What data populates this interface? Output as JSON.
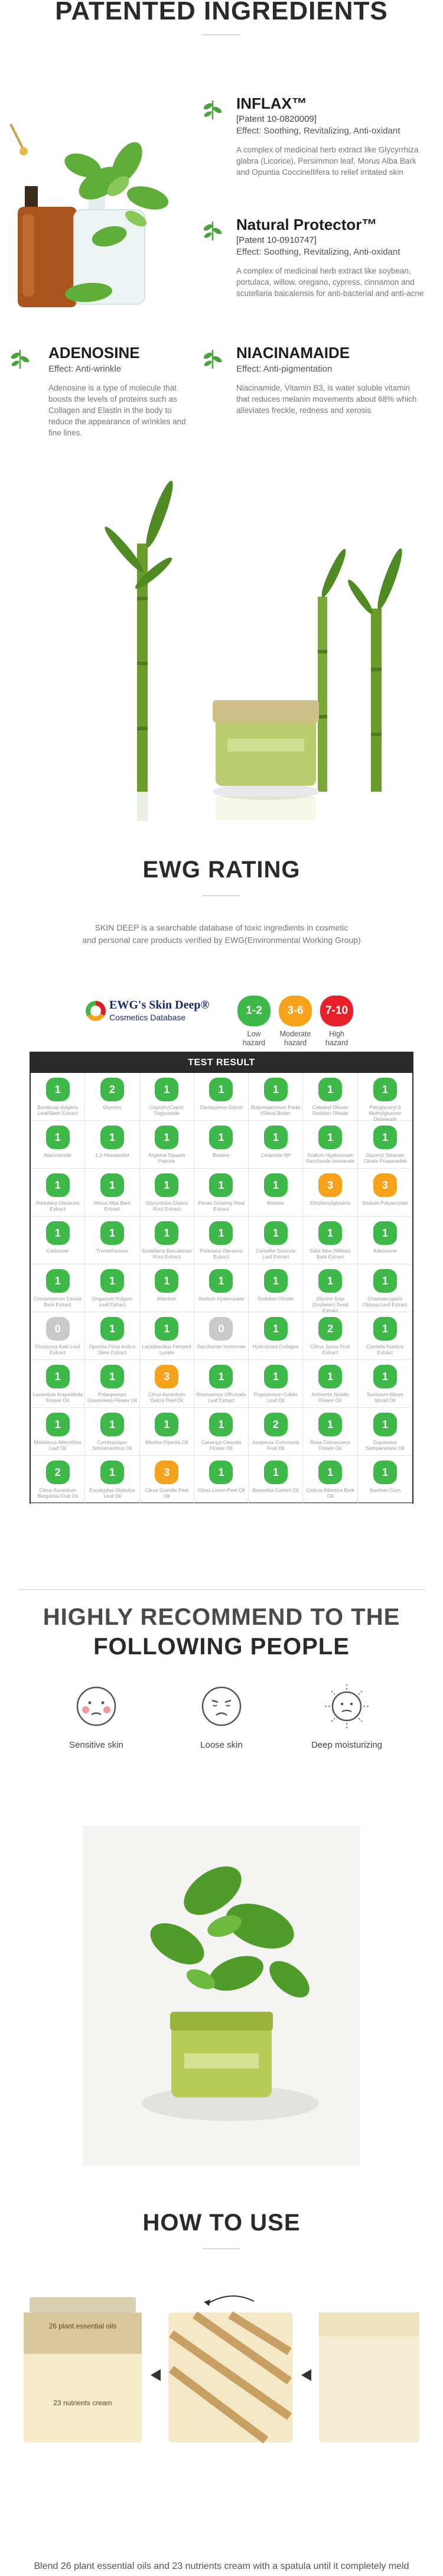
{
  "colors": {
    "low": "#3db849",
    "moderate": "#f7a21b",
    "high": "#e8202a",
    "unavailable": "#c9c9c9",
    "dark": "#2a2a2a"
  },
  "patented": {
    "title": "PATENTED INGREDIENTS",
    "ingredients": [
      {
        "name": "INFLAX™",
        "patent": "[Patent 10-0820009]",
        "effect": "Effect: Soothing, Revitalizing, Anti-oxidant",
        "desc": "A complex of medicinal herb extract like Glycyrrhiza glabra (Licorice), Persimmon leaf, Morus Alba Bark and Opuntia Coccinellifera to relief irritated skin",
        "icon": "leaf-icon"
      },
      {
        "name": "Natural Protector™",
        "patent": "[Patent 10-0910747]",
        "effect": "Effect: Soothing, Revitalizing, Anti-oxidant",
        "desc": "A complex of medicinal herb extract like soybean, portulaca, willow, oregano, cypress, cinnamon and scutellaria baicalensis for anti-bacterial and anti-acne",
        "icon": "leaf-icon"
      },
      {
        "name": "ADENOSINE",
        "patent": "",
        "effect": "Effect: Anti-wrinkle",
        "desc": "Adenosine is a type of molecule that boosts the levels of proteins such as Collagen and Elastin in the body to reduce the appearance of wrinkles and fine lines.",
        "icon": "leaf-icon"
      },
      {
        "name": "NIACINAMAIDE",
        "patent": "",
        "effect": "Effect: Anti-pigmentation",
        "desc": "Niacinamide, Vitamin B3, is water soluble vitamin that reduces melanin movements about 68% which alleviates freckle, redness and xerosis",
        "icon": "leaf-icon"
      }
    ]
  },
  "ewg": {
    "title": "EWG RATING",
    "desc_line1": "SKIN DEEP is a searchable database of toxic ingredients in cosmetic",
    "desc_line2": "and personal care products verified by EWG(Environmental Working Group)",
    "logo_line1": "EWG's Skin Deep®",
    "logo_line2": "Cosmetics Database",
    "hazards": [
      {
        "range": "1-2",
        "label1": "Low",
        "label2": "hazard",
        "color": "#3db849"
      },
      {
        "range": "3-6",
        "label1": "Moderate",
        "label2": "hazard",
        "color": "#f7a21b"
      },
      {
        "range": "7-10",
        "label1": "High",
        "label2": "hazard",
        "color": "#e8202a"
      }
    ],
    "table_title": "TEST RESULT",
    "cells": [
      {
        "s": "1",
        "n": "Bambusa Vulgaris Leaf/Stem Extract"
      },
      {
        "s": "2",
        "n": "Glycerin"
      },
      {
        "s": "1",
        "n": "Caprylic/Capric Triglyceride"
      },
      {
        "s": "1",
        "n": "Dipropylene Glycol"
      },
      {
        "s": "1",
        "n": "Butyrospermum Parkii (Shea) Butter"
      },
      {
        "s": "1",
        "n": "Cetearyl Olivate Sorbitan Olivate"
      },
      {
        "s": "1",
        "n": "Polyglyceryl-3 Methylglucose Distearate"
      },
      {
        "s": "1",
        "n": "Niacinamide"
      },
      {
        "s": "1",
        "n": "1,2-Hexanediol"
      },
      {
        "s": "1",
        "n": "Arginine Squash Peptide"
      },
      {
        "s": "1",
        "n": "Betaine"
      },
      {
        "s": "1",
        "n": "Ceramide NP"
      },
      {
        "s": "1",
        "n": "Sodium Hyaluronate Saccharide Isomerate"
      },
      {
        "s": "1",
        "n": "Glyceryl Stearate Citrate Propanediol"
      },
      {
        "s": "1",
        "n": "Portulaca Oleracea Extract"
      },
      {
        "s": "1",
        "n": "Morus Alba Bark Extract"
      },
      {
        "s": "1",
        "n": "Glycyrrhiza Glabra Root Extract"
      },
      {
        "s": "1",
        "n": "Panax Ginseng Root Extract"
      },
      {
        "s": "1",
        "n": "Betaine"
      },
      {
        "s": "3",
        "n": "Ethylhexylglycerin"
      },
      {
        "s": "3",
        "n": "Sodium Polyacrylate"
      },
      {
        "s": "1",
        "n": "Carbomer"
      },
      {
        "s": "1",
        "n": "Tromethamine"
      },
      {
        "s": "1",
        "n": "Scutellaria Baicalensis Root Extract"
      },
      {
        "s": "1",
        "n": "Portulaca Oleracea Extract"
      },
      {
        "s": "1",
        "n": "Camellia Sinensis Leaf Extract"
      },
      {
        "s": "1",
        "n": "Salix Alba (Willow) Bark Extract"
      },
      {
        "s": "1",
        "n": "Adenosine"
      },
      {
        "s": "1",
        "n": "Cinnamomum Cassia Bark Extract"
      },
      {
        "s": "1",
        "n": "Origanum Vulgare Leaf Extract"
      },
      {
        "s": "1",
        "n": "Allantoin"
      },
      {
        "s": "1",
        "n": "Sodium Hyaluronate"
      },
      {
        "s": "1",
        "n": "Sorbitan Olivate"
      },
      {
        "s": "1",
        "n": "Glycine Soja (Soybean) Seed Extract"
      },
      {
        "s": "1",
        "n": "Chamaecyparis Obtusa Leaf Extract"
      },
      {
        "s": "0",
        "n": "Diospyros Kaki Leaf Extract"
      },
      {
        "s": "1",
        "n": "Opuntia Ficus-Indica Stem Extract"
      },
      {
        "s": "1",
        "n": "Lactobacillus Ferment Lysate"
      },
      {
        "s": "0",
        "n": "Saccharide Isomerate"
      },
      {
        "s": "1",
        "n": "Hydrolyzed Collagen"
      },
      {
        "s": "2",
        "n": "Citrus Junos Fruit Extract"
      },
      {
        "s": "1",
        "n": "Centella Asiatica Extract"
      },
      {
        "s": "1",
        "n": "Lavandula Angustifolia Flower Oil"
      },
      {
        "s": "1",
        "n": "Pelargonium Graveolens Flower Oil"
      },
      {
        "s": "3",
        "n": "Citrus Aurantium Dulcis Peel Oil"
      },
      {
        "s": "1",
        "n": "Rosmarinus Officinalis Leaf Extract"
      },
      {
        "s": "1",
        "n": "Pogostemon Cablin Leaf Oil"
      },
      {
        "s": "1",
        "n": "Anthemis Nobilis Flower Oil"
      },
      {
        "s": "1",
        "n": "Santalum Album Wood Oil"
      },
      {
        "s": "1",
        "n": "Melaleuca Alternifolia Leaf Oil"
      },
      {
        "s": "1",
        "n": "Cymbopogon Schoenanthus Oil"
      },
      {
        "s": "1",
        "n": "Mentha Piperita Oil"
      },
      {
        "s": "1",
        "n": "Cananga Odorata Flower Oil"
      },
      {
        "s": "2",
        "n": "Juniperus Communis Fruit Oil"
      },
      {
        "s": "1",
        "n": "Rosa Damascena Flower Oil"
      },
      {
        "s": "1",
        "n": "Cupressus Sempervirens Oil"
      },
      {
        "s": "2",
        "n": "Citrus Aurantium Bergamia Fruit Oil"
      },
      {
        "s": "1",
        "n": "Eucalyptus Globulus Leaf Oil"
      },
      {
        "s": "3",
        "n": "Citrus Grandis Peel Oil"
      },
      {
        "s": "1",
        "n": "Citrus Limon Peel Oil"
      },
      {
        "s": "1",
        "n": "Boswellia Carterii Oil"
      },
      {
        "s": "1",
        "n": "Cedrus Atlantica Bark Oil"
      },
      {
        "s": "1",
        "n": "Xanthan Gum"
      }
    ]
  },
  "recommend": {
    "title1": "HIGHLY RECOMMEND TO THE",
    "title2": "FOLLOWING PEOPLE",
    "items": [
      {
        "label": "Sensitive skin",
        "icon": "sensitive-face-icon"
      },
      {
        "label": "Loose skin",
        "icon": "loose-face-icon"
      },
      {
        "label": "Deep moisturizing",
        "icon": "sun-face-icon"
      }
    ]
  },
  "howto": {
    "title": "HOW TO USE",
    "jar_top_label": "26 plant essential oils",
    "jar_bottom_label": "23 nutrients cream",
    "caption": "Blend 26 plant essential oils and 23 nutrients cream with a spatula until it completely meld"
  }
}
